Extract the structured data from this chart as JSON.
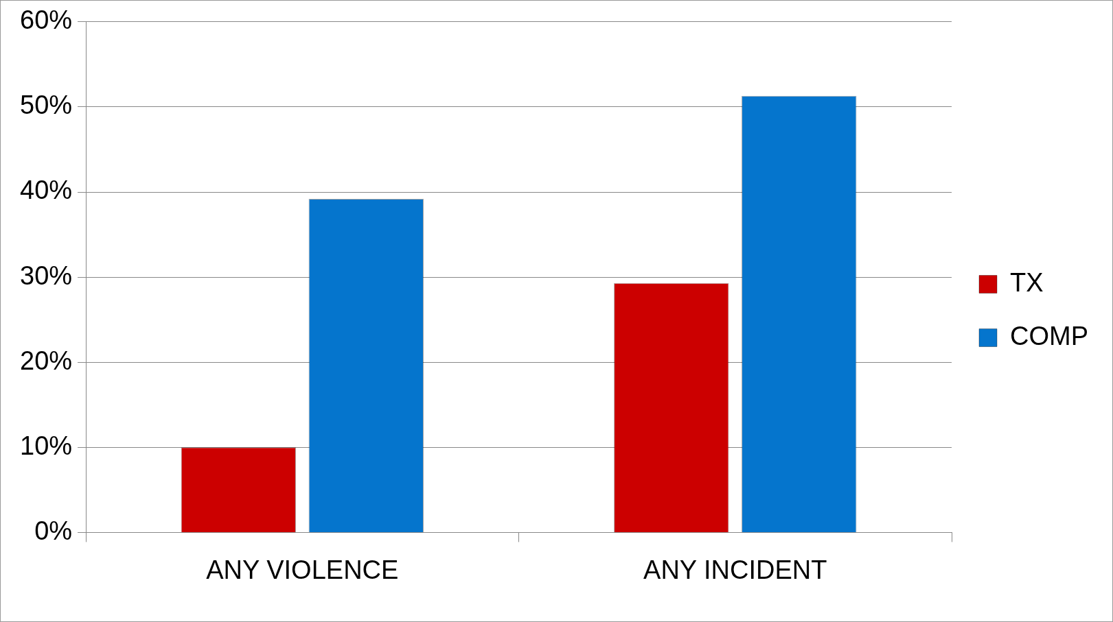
{
  "chart_data": {
    "type": "bar",
    "categories": [
      "ANY VIOLENCE",
      "ANY INCIDENT"
    ],
    "series": [
      {
        "name": "TX",
        "color": "#cc0000",
        "values": [
          10,
          29.3
        ]
      },
      {
        "name": "COMP",
        "color": "#0575cd",
        "values": [
          39.2,
          51.3
        ]
      }
    ],
    "ylim": [
      0,
      60
    ],
    "yticks": [
      {
        "value": 0,
        "label": "0%"
      },
      {
        "value": 10,
        "label": "10%"
      },
      {
        "value": 20,
        "label": "20%"
      },
      {
        "value": 30,
        "label": "30%"
      },
      {
        "value": 40,
        "label": "40%"
      },
      {
        "value": 50,
        "label": "50%"
      },
      {
        "value": 60,
        "label": "60%"
      }
    ],
    "grid": "y",
    "legend": "right"
  }
}
